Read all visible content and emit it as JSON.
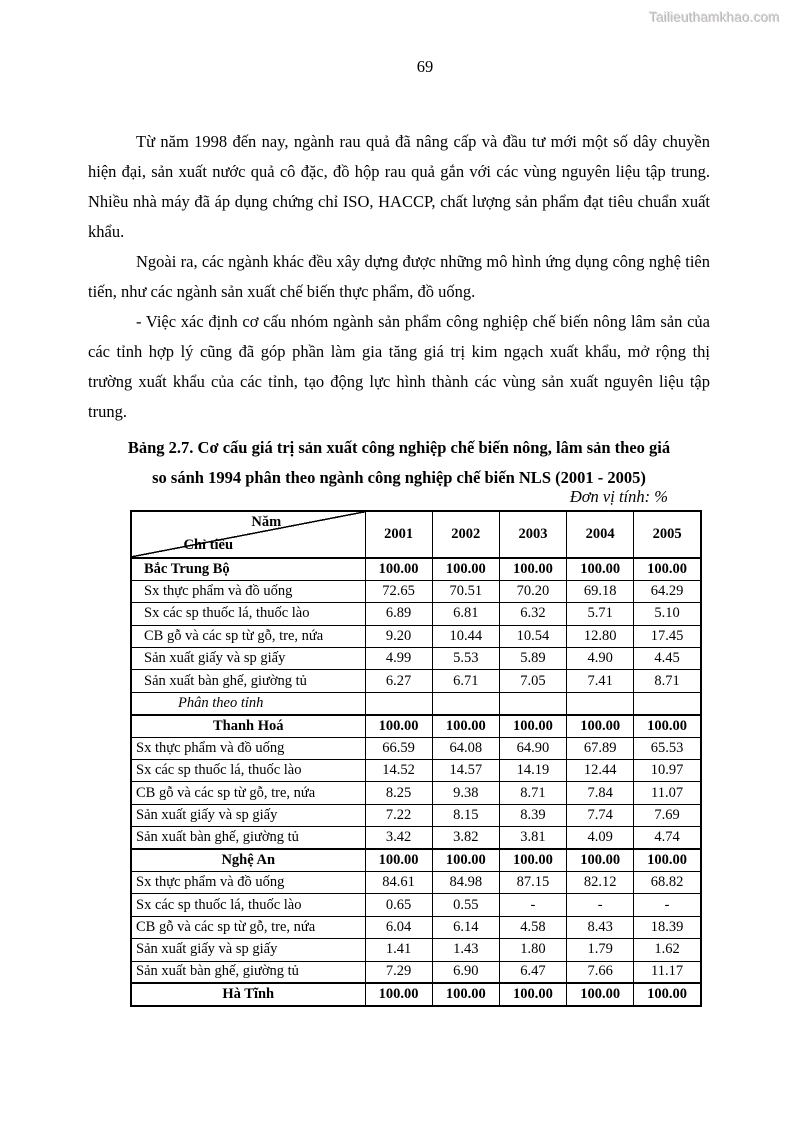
{
  "watermark": "Tailieuthamkhao.com",
  "page_number": "69",
  "paragraphs": {
    "p1": "Từ năm 1998 đến nay, ngành rau quả đã nâng cấp và đầu tư mới một số dây chuyền hiện đại, sản xuất nước quả cô đặc, đồ hộp rau quả gắn với các vùng nguyên liệu tập trung. Nhiều nhà máy đã áp dụng chứng chỉ ISO, HACCP, chất lượng sản phẩm đạt tiêu chuẩn xuất khẩu.",
    "p2": "Ngoài ra, các ngành khác đều xây dựng được những mô hình ứng dụng công nghệ tiên tiến, như các ngành sản xuất chế biến thực phẩm, đồ uống.",
    "p3": "- Việc xác định cơ cấu nhóm ngành sản phẩm công nghiệp chế biến nông lâm sản của các tỉnh hợp lý cũng đã góp phần làm gia tăng giá trị kim ngạch xuất khẩu, mở rộng thị trường xuất khẩu của các tỉnh, tạo động lực hình thành các vùng sản xuất nguyên liệu tập trung."
  },
  "caption": {
    "line1": "Bảng 2.7. Cơ cấu giá trị sản xuất công nghiệp chế biến nông, lâm sản theo giá",
    "line2": "so sánh 1994 phân theo ngành công nghiệp chế biến NLS (2001 - 2005)"
  },
  "unit_note": "Đơn vị tính: %",
  "table": {
    "corner_top": "Năm",
    "corner_bottom": "Chỉ tiêu",
    "years": [
      "2001",
      "2002",
      "2003",
      "2004",
      "2005"
    ],
    "rows": [
      {
        "label": "Bắc Trung Bộ",
        "style": "region",
        "values": [
          "100.00",
          "100.00",
          "100.00",
          "100.00",
          "100.00"
        ]
      },
      {
        "label": "Sx thực phẩm và đồ uống",
        "style": "item",
        "values": [
          "72.65",
          "70.51",
          "70.20",
          "69.18",
          "64.29"
        ]
      },
      {
        "label": "Sx các sp thuốc lá, thuốc lào",
        "style": "item",
        "values": [
          "6.89",
          "6.81",
          "6.32",
          "5.71",
          "5.10"
        ]
      },
      {
        "label": "CB gỗ và các sp từ gỗ, tre, nứa",
        "style": "item",
        "values": [
          "9.20",
          "10.44",
          "10.54",
          "12.80",
          "17.45"
        ]
      },
      {
        "label": "Sản xuất giấy và sp giấy",
        "style": "item",
        "values": [
          "4.99",
          "5.53",
          "5.89",
          "4.90",
          "4.45"
        ]
      },
      {
        "label": "Sản xuất bàn ghế, giường tủ",
        "style": "item",
        "values": [
          "6.27",
          "6.71",
          "7.05",
          "7.41",
          "8.71"
        ]
      },
      {
        "label": "Phân theo tỉnh",
        "style": "section",
        "values": [
          "",
          "",
          "",
          "",
          ""
        ]
      },
      {
        "label": "Thanh Hoá",
        "style": "province",
        "values": [
          "100.00",
          "100.00",
          "100.00",
          "100.00",
          "100.00"
        ]
      },
      {
        "label": "Sx thực phẩm và đồ uống",
        "style": "item2",
        "values": [
          "66.59",
          "64.08",
          "64.90",
          "67.89",
          "65.53"
        ]
      },
      {
        "label": "Sx các sp thuốc lá, thuốc lào",
        "style": "item2",
        "values": [
          "14.52",
          "14.57",
          "14.19",
          "12.44",
          "10.97"
        ]
      },
      {
        "label": "CB gỗ và các sp từ gỗ, tre, nứa",
        "style": "item2",
        "values": [
          "8.25",
          "9.38",
          "8.71",
          "7.84",
          "11.07"
        ]
      },
      {
        "label": "Sản xuất giấy và sp giấy",
        "style": "item2",
        "values": [
          "7.22",
          "8.15",
          "8.39",
          "7.74",
          "7.69"
        ]
      },
      {
        "label": "Sản xuất bàn ghế, giường tủ",
        "style": "item2",
        "values": [
          "3.42",
          "3.82",
          "3.81",
          "4.09",
          "4.74"
        ]
      },
      {
        "label": "Nghệ An",
        "style": "province",
        "values": [
          "100.00",
          "100.00",
          "100.00",
          "100.00",
          "100.00"
        ]
      },
      {
        "label": "Sx thực phẩm và đồ uống",
        "style": "item2",
        "values": [
          "84.61",
          "84.98",
          "87.15",
          "82.12",
          "68.82"
        ]
      },
      {
        "label": "Sx các sp thuốc lá, thuốc lào",
        "style": "item2",
        "values": [
          "0.65",
          "0.55",
          "-",
          "-",
          "-"
        ]
      },
      {
        "label": "CB gỗ và các sp từ gỗ, tre, nứa",
        "style": "item2",
        "values": [
          "6.04",
          "6.14",
          "4.58",
          "8.43",
          "18.39"
        ]
      },
      {
        "label": "Sản xuất giấy và sp giấy",
        "style": "item2",
        "values": [
          "1.41",
          "1.43",
          "1.80",
          "1.79",
          "1.62"
        ]
      },
      {
        "label": "Sản xuất bàn ghế, giường tủ",
        "style": "item2",
        "values": [
          "7.29",
          "6.90",
          "6.47",
          "7.66",
          "11.17"
        ]
      },
      {
        "label": "Hà Tĩnh",
        "style": "province",
        "values": [
          "100.00",
          "100.00",
          "100.00",
          "100.00",
          "100.00"
        ]
      }
    ]
  }
}
